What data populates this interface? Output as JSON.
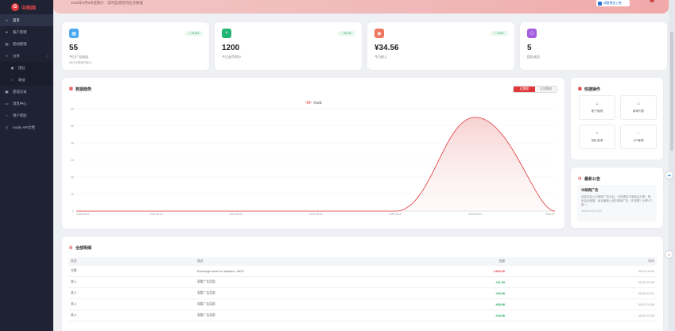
{
  "brand": {
    "logo_char": "G",
    "name": "中邮网"
  },
  "sidebar": {
    "items": [
      {
        "label": "首页",
        "icon": "home-icon",
        "glyph": "⌂",
        "active": true
      },
      {
        "label": "账户管理",
        "icon": "user-icon",
        "glyph": "●"
      },
      {
        "label": "新闻管理",
        "icon": "news-icon",
        "glyph": "▤",
        "caret": "›"
      },
      {
        "label": "分享",
        "icon": "share-icon",
        "glyph": "<",
        "caret": "˅"
      },
      {
        "label": "团队",
        "icon": "team-icon",
        "glyph": "◉",
        "sub": true
      },
      {
        "label": "收益",
        "icon": "earnings-icon",
        "glyph": "○",
        "sub": true
      },
      {
        "label": "提现记录",
        "icon": "withdraw-icon",
        "glyph": "▣"
      },
      {
        "label": "消息中心",
        "icon": "message-icon",
        "glyph": "▭"
      },
      {
        "label": "用户帮助",
        "icon": "help-icon",
        "glyph": "♀"
      },
      {
        "label": "mode.API文档",
        "icon": "doc-icon",
        "glyph": "▯"
      }
    ]
  },
  "banner": {
    "text": "2026年5月9日星期六 · 实时监测您的业务数据",
    "button_label": "调整预览上卷"
  },
  "stats": [
    {
      "icon": "calendar-icon",
      "glyph": "▦",
      "color": "#4aa8f0",
      "badge": "↑ 13.5%",
      "value": "55",
      "label": "今日广告收益",
      "sub": "(统计依据我的展示)"
    },
    {
      "icon": "plus-icon",
      "glyph": "+",
      "color": "#22b573",
      "badge": "↑ 8.2%",
      "value": "1200",
      "label": "今日金币积分"
    },
    {
      "icon": "coin-icon",
      "glyph": "◉",
      "color": "#f07860",
      "badge": "↑ 5.4%",
      "value": "¥34.56",
      "label": "今日收入"
    },
    {
      "icon": "group-icon",
      "glyph": "⚇",
      "color": "#a45de0",
      "value": "5",
      "label": "团队成员"
    }
  ],
  "chart": {
    "title": "数据趋势",
    "toggle": [
      "近期收",
      "全部数据"
    ],
    "legend": "收益值"
  },
  "chart_data": {
    "type": "line",
    "x": [
      "2026-05-01",
      "2026-05-04",
      "2026-05-09",
      "2026-05-18",
      "2026-05-27",
      "2026-06-04",
      "2026-07"
    ],
    "series": [
      {
        "name": "收益值",
        "values": [
          0,
          0,
          0,
          0,
          0,
          55,
          0
        ]
      }
    ],
    "ylim": [
      0,
      60
    ],
    "yticks": [
      "60",
      "50",
      "40",
      "30",
      "20",
      "10",
      "0"
    ],
    "grid": true,
    "legend_position": "top-center"
  },
  "quick_ops": {
    "title": "快捷操作",
    "items": [
      {
        "label": "账户管理",
        "icon": "user-icon",
        "glyph": "☺"
      },
      {
        "label": "新闻列表",
        "icon": "folder-icon",
        "glyph": "▭"
      },
      {
        "label": "团队邀请",
        "icon": "share-icon",
        "glyph": "<"
      },
      {
        "label": "API管理",
        "icon": "api-icon",
        "glyph": "♁"
      }
    ]
  },
  "notice": {
    "title": "最新公告",
    "head": "中邮网广告",
    "text": "欢迎您加入中邮网广告平台，为您提供丰厚收益分享，联系后台客服，每日最新上线中邮网广告（可查看）分享1个推一…",
    "date": "2026-05-05 10:20"
  },
  "details": {
    "title": "全部明细",
    "columns": [
      "类型",
      "描述",
      "金额",
      "时间"
    ],
    "rows": [
      {
        "type": "兑换",
        "desc": "Exchange score for balance -180.0",
        "amount": "-1184.00",
        "sign": "neg",
        "time": "05-09 09:03"
      },
      {
        "type": "收入",
        "desc": "观看广告奖励",
        "amount": "+21.00",
        "sign": "pos",
        "time": "05-09 23:28"
      },
      {
        "type": "收入",
        "desc": "观看广告奖励",
        "amount": "+20.00",
        "sign": "pos",
        "time": "05-09 23:21"
      },
      {
        "type": "收入",
        "desc": "观看广告奖励",
        "amount": "+35.90",
        "sign": "pos",
        "time": "05-09 23:28"
      },
      {
        "type": "收入",
        "desc": "观看广告奖励",
        "amount": "+10.00",
        "sign": "pos",
        "time": "05-09 23:28"
      }
    ]
  }
}
